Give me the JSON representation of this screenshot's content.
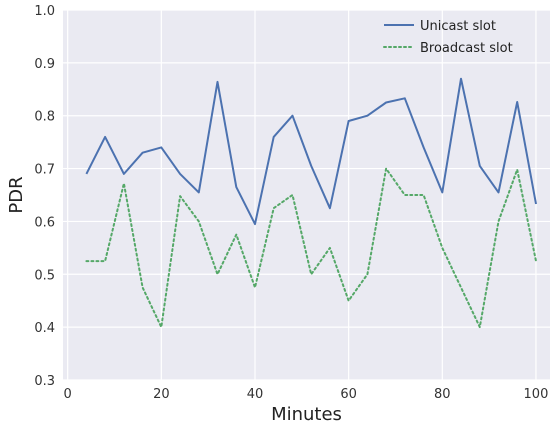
{
  "chart_data": {
    "type": "line",
    "xlabel": "Minutes",
    "ylabel": "PDR",
    "xlim": [
      -1,
      103
    ],
    "ylim": [
      0.3,
      1.0
    ],
    "xticks": [
      0,
      20,
      40,
      60,
      80,
      100
    ],
    "yticks": [
      0.3,
      0.4,
      0.5,
      0.6,
      0.7,
      0.8,
      0.9,
      1.0
    ],
    "xtick_labels": [
      "0",
      "20",
      "40",
      "60",
      "80",
      "100"
    ],
    "ytick_labels": [
      "0.3",
      "0.4",
      "0.5",
      "0.6",
      "0.7",
      "0.8",
      "0.9",
      "1.0"
    ],
    "grid": true,
    "legend_position": "top-right",
    "x": [
      4,
      8,
      12,
      16,
      20,
      24,
      28,
      32,
      36,
      40,
      44,
      48,
      52,
      56,
      60,
      64,
      68,
      72,
      76,
      80,
      84,
      88,
      92,
      96,
      100
    ],
    "series": [
      {
        "name": "Unicast slot",
        "style": "solid",
        "color": "#4c72b0",
        "values": [
          0.69,
          0.76,
          0.69,
          0.73,
          0.74,
          0.69,
          0.655,
          0.864,
          0.665,
          0.595,
          0.76,
          0.8,
          0.705,
          0.625,
          0.79,
          0.8,
          0.825,
          0.833,
          0.74,
          0.655,
          0.87,
          0.705,
          0.655,
          0.826,
          0.633
        ]
      },
      {
        "name": "Broadcast slot",
        "style": "dotted",
        "color": "#55a868",
        "values": [
          0.525,
          0.525,
          0.672,
          0.475,
          0.4,
          0.648,
          0.6,
          0.5,
          0.575,
          0.475,
          0.625,
          0.65,
          0.5,
          0.55,
          0.45,
          0.5,
          0.7,
          0.65,
          0.65,
          0.55,
          0.475,
          0.4,
          0.6,
          0.698,
          0.525
        ]
      }
    ]
  }
}
